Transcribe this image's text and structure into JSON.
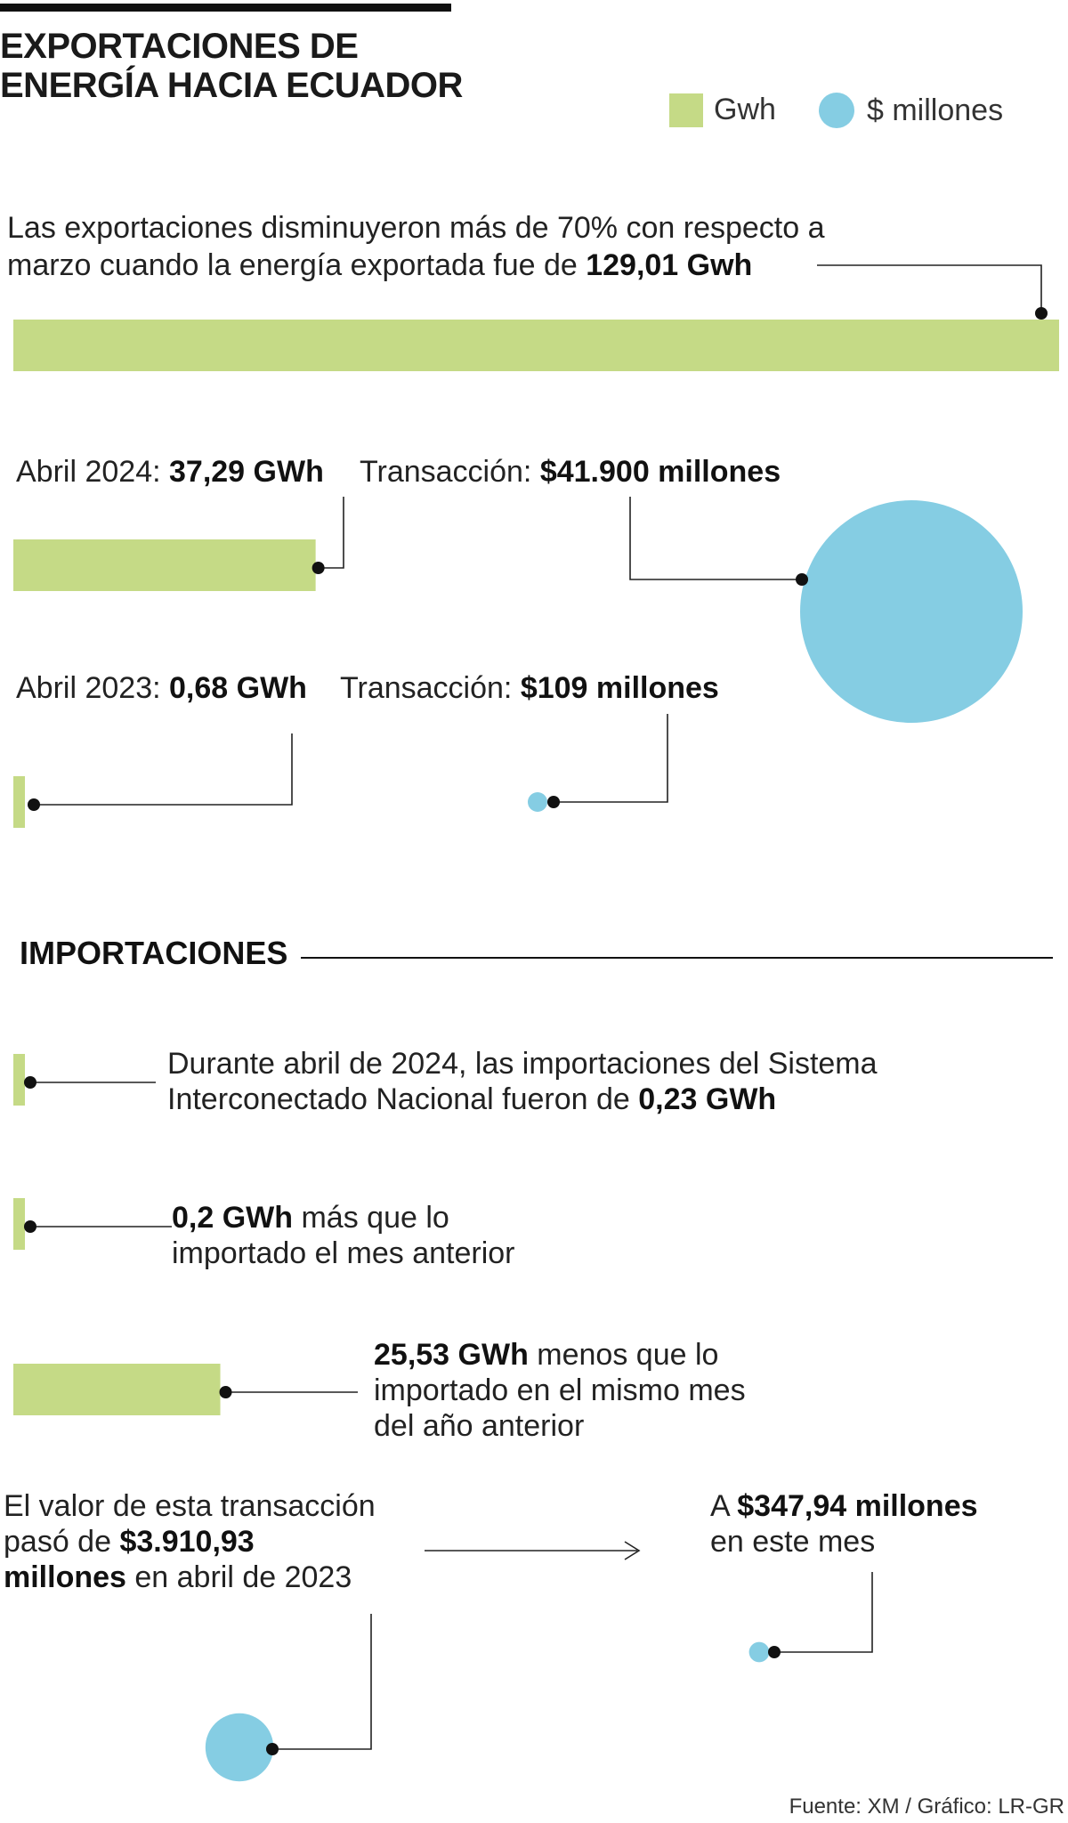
{
  "header": {
    "title_line1": "EXPORTACIONES DE",
    "title_line2": "ENERGÍA HACIA ECUADOR"
  },
  "legend": {
    "gwh_label": "Gwh",
    "money_label": "$ millones",
    "gwh_color": "#c5da86",
    "money_color": "#85cde3"
  },
  "exports": {
    "march_note_line1": "Las exportaciones disminuyeron más de 70% con respecto a",
    "march_note_line2_prefix": "marzo cuando la energía exportada fue de ",
    "march_value": "129,01 Gwh",
    "april2024_prefix": "Abril 2024: ",
    "april2024_gwh": "37,29 GWh",
    "april2024_trans_prefix": "Transacción: ",
    "april2024_trans": "$41.900 millones",
    "april2023_prefix": "Abril 2023: ",
    "april2023_gwh": "0,68 GWh",
    "april2023_trans_prefix": "Transacción: ",
    "april2023_trans": "$109 millones"
  },
  "imports": {
    "heading": "IMPORTACIONES",
    "note1_line1": "Durante abril de 2024, las importaciones del Sistema",
    "note1_line2_prefix": "Interconectado Nacional fueron de ",
    "note1_value": "0,23 GWh",
    "note2_value": "0,2 GWh",
    "note2_line1_suffix": " más que lo",
    "note2_line2": "importado el mes anterior",
    "note3_value": "25,53 GWh",
    "note3_line1_suffix": " menos que lo",
    "note3_line2": "importado en el mismo mes",
    "note3_line3": "del año anterior",
    "value_line1": "El valor de esta transacción",
    "value_line2_prefix": "pasó de ",
    "value_line2_bold": "$3.910,93",
    "value_line3_bold": "millones",
    "value_line3_suffix": " en abril de 2023",
    "now_prefix": "A ",
    "now_value": "$347,94 millones",
    "now_line2": "en este mes"
  },
  "source": "Fuente: XM / Gráfico: LR-GR",
  "chart_data": {
    "type": "bar",
    "title": "EXPORTACIONES DE ENERGÍA HACIA ECUADOR",
    "units": {
      "energy": "GWh",
      "money": "$ millones"
    },
    "exports_gwh": [
      {
        "label": "Marzo 2024",
        "value": 129.01
      },
      {
        "label": "Abril 2024",
        "value": 37.29
      },
      {
        "label": "Abril 2023",
        "value": 0.68
      }
    ],
    "exports_transaction_millions": [
      {
        "label": "Abril 2024",
        "value": 41900
      },
      {
        "label": "Abril 2023",
        "value": 109
      }
    ],
    "imports_gwh": [
      {
        "label": "Abril 2024",
        "value": 0.23
      },
      {
        "label": "Más que el mes anterior",
        "value": 0.2
      },
      {
        "label": "Menos que el mismo mes del año anterior",
        "value": 25.53
      }
    ],
    "imports_transaction_millions": [
      {
        "label": "Abril 2023",
        "value": 3910.93
      },
      {
        "label": "Abril 2024",
        "value": 347.94
      }
    ]
  }
}
